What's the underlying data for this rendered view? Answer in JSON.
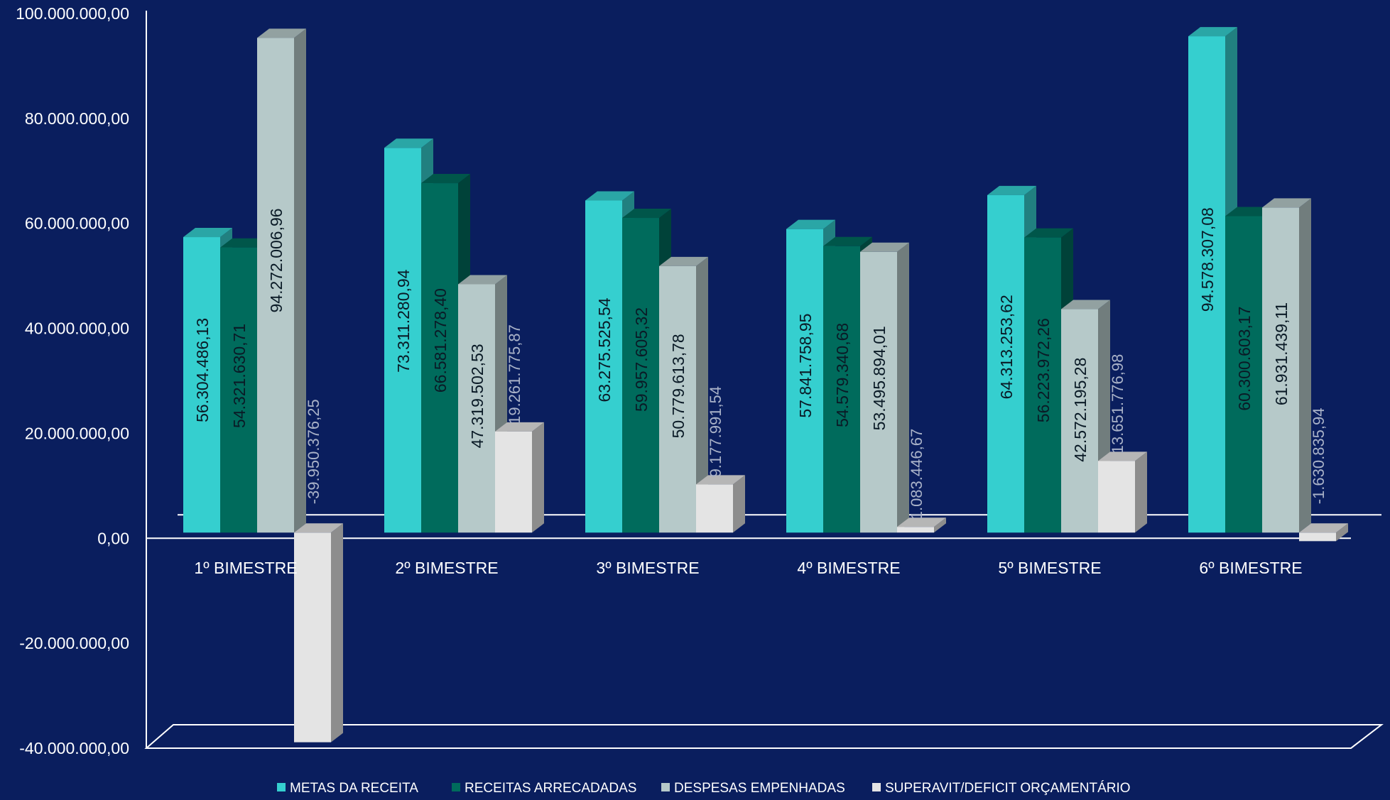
{
  "chart_data": {
    "type": "bar",
    "title": "",
    "xlabel": "",
    "ylabel": "",
    "ylim": [
      -40000000,
      100000000
    ],
    "yticks": [
      -40000000,
      -20000000,
      0,
      20000000,
      40000000,
      60000000,
      80000000,
      100000000
    ],
    "ytick_labels": [
      "-40.000.000,00",
      "-20.000.000,00",
      "0,00",
      "20.000.000,00",
      "40.000.000,00",
      "60.000.000,00",
      "80.000.000,00",
      "100.000.000,00"
    ],
    "categories": [
      "1º BIMESTRE",
      "2º BIMESTRE",
      "3º BIMESTRE",
      "4º BIMESTRE",
      "5º BIMESTRE",
      "6º BIMESTRE"
    ],
    "legend_position": "bottom",
    "grid": false,
    "series": [
      {
        "name": "METAS DA RECEITA",
        "color": "#35cfcf",
        "values": [
          56304486.13,
          73311280.94,
          63275525.54,
          57841758.95,
          64313253.62,
          94578307.08
        ],
        "labels": [
          "56.304.486,13",
          "73.311.280,94",
          "63.275.525,54",
          "57.841.758,95",
          "64.313.253,62",
          "94.578.307,08"
        ]
      },
      {
        "name": "RECEITAS ARRECADADAS",
        "color": "#006b5c",
        "values": [
          54321630.71,
          66581278.4,
          59957605.32,
          54579340.68,
          56223972.26,
          60300603.17
        ],
        "labels": [
          "54.321.630,71",
          "66.581.278,40",
          "59.957.605,32",
          "54.579.340,68",
          "56.223.972,26",
          "60.300.603,17"
        ]
      },
      {
        "name": "DESPESAS EMPENHADAS",
        "color": "#b6c9c9",
        "values": [
          94272006.96,
          47319502.53,
          50779613.78,
          53495894.01,
          42572195.28,
          61931439.11
        ],
        "labels": [
          "94.272.006,96",
          "47.319.502,53",
          "50.779.613,78",
          "53.495.894,01",
          "42.572.195,28",
          "61.931.439,11"
        ]
      },
      {
        "name": "SUPERAVIT/DEFICIT ORÇAMENTÁRIO",
        "color": "#e4e4e4",
        "values": [
          -39950376.25,
          19261775.87,
          9177991.54,
          1083446.67,
          13651776.98,
          -1630835.94
        ],
        "labels": [
          "-39.950.376,25",
          "19.261.775,87",
          "9.177.991,54",
          "1.083.446,67",
          "13.651.776,98",
          "-1.630.835,94"
        ]
      }
    ]
  }
}
